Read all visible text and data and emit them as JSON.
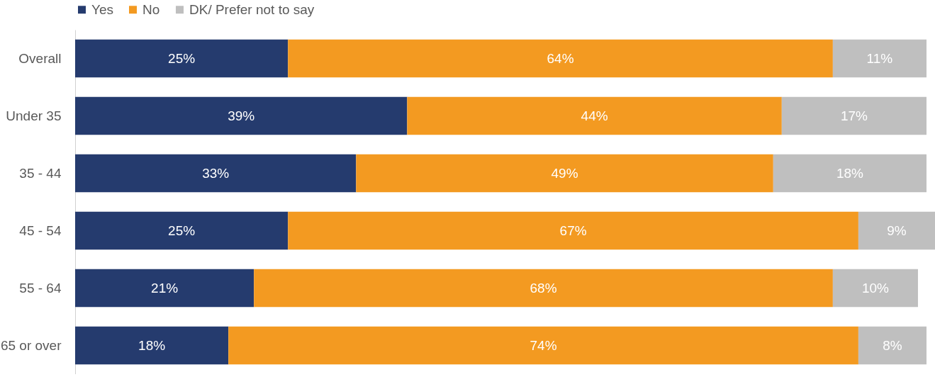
{
  "chart_data": {
    "type": "bar",
    "orientation": "horizontal",
    "stacked": true,
    "legend": "top",
    "categories": [
      "Overall",
      "Under 35",
      "35 - 44",
      "45 - 54",
      "55 - 64",
      "65 or over"
    ],
    "series": [
      {
        "name": "Yes",
        "color": "#253b6e",
        "values": [
          25,
          39,
          33,
          25,
          21,
          18
        ],
        "value_labels": [
          "25%",
          "39%",
          "33%",
          "25%",
          "21%",
          "18%"
        ]
      },
      {
        "name": "No",
        "color": "#f39a21",
        "values": [
          64,
          44,
          49,
          67,
          68,
          74
        ],
        "value_labels": [
          "64%",
          "44%",
          "49%",
          "67%",
          "68%",
          "74%"
        ]
      },
      {
        "name": "DK/ Prefer not to say",
        "color": "#bfbfbf",
        "values": [
          11,
          17,
          18,
          9,
          10,
          8
        ],
        "value_labels": [
          "11%",
          "17%",
          "18%",
          "9%",
          "10%",
          "8%"
        ]
      }
    ]
  }
}
